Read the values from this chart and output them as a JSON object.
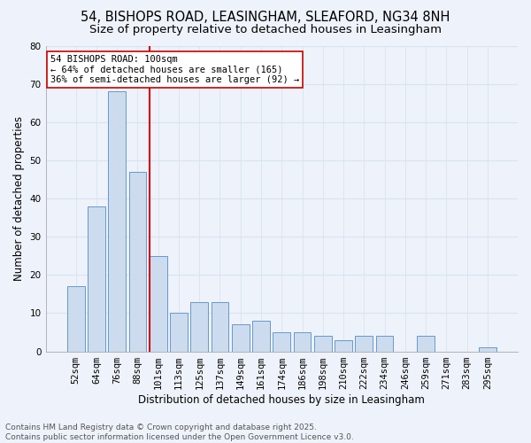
{
  "title": "54, BISHOPS ROAD, LEASINGHAM, SLEAFORD, NG34 8NH",
  "subtitle": "Size of property relative to detached houses in Leasingham",
  "xlabel": "Distribution of detached houses by size in Leasingham",
  "ylabel": "Number of detached properties",
  "categories": [
    "52sqm",
    "64sqm",
    "76sqm",
    "88sqm",
    "101sqm",
    "113sqm",
    "125sqm",
    "137sqm",
    "149sqm",
    "161sqm",
    "174sqm",
    "186sqm",
    "198sqm",
    "210sqm",
    "222sqm",
    "234sqm",
    "246sqm",
    "259sqm",
    "271sqm",
    "283sqm",
    "295sqm"
  ],
  "values": [
    17,
    38,
    68,
    47,
    25,
    10,
    13,
    13,
    7,
    8,
    5,
    5,
    4,
    3,
    4,
    4,
    0,
    4,
    0,
    0,
    1
  ],
  "bar_color": "#ccdcee",
  "bar_edge_color": "#6699cc",
  "grid_color": "#d8e4f0",
  "background_color": "#eef2fa",
  "vline_color": "#cc0000",
  "annotation_text": "54 BISHOPS ROAD: 100sqm\n← 64% of detached houses are smaller (165)\n36% of semi-detached houses are larger (92) →",
  "annotation_box_color": "#ffffff",
  "annotation_box_edge_color": "#cc0000",
  "ylim": [
    0,
    80
  ],
  "yticks": [
    0,
    10,
    20,
    30,
    40,
    50,
    60,
    70,
    80
  ],
  "footer_text": "Contains HM Land Registry data © Crown copyright and database right 2025.\nContains public sector information licensed under the Open Government Licence v3.0.",
  "title_fontsize": 10.5,
  "subtitle_fontsize": 9.5,
  "xlabel_fontsize": 8.5,
  "ylabel_fontsize": 8.5,
  "tick_fontsize": 7.5,
  "annotation_fontsize": 7.5,
  "footer_fontsize": 6.5
}
